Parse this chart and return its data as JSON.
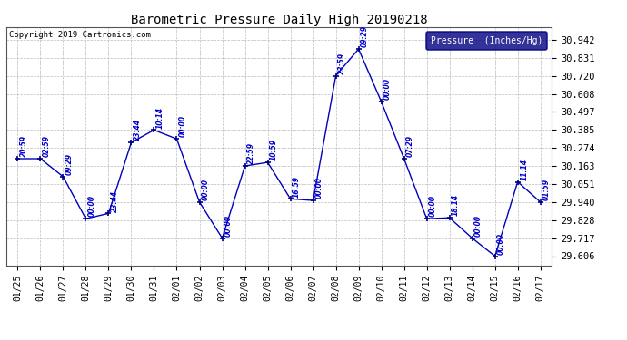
{
  "title": "Barometric Pressure Daily High 20190218",
  "copyright": "Copyright 2019 Cartronics.com",
  "legend_label": "Pressure  (Inches/Hg)",
  "x_labels": [
    "01/25",
    "01/26",
    "01/27",
    "01/28",
    "01/29",
    "01/30",
    "01/31",
    "02/01",
    "02/02",
    "02/03",
    "02/04",
    "02/05",
    "02/06",
    "02/07",
    "02/08",
    "02/09",
    "02/10",
    "02/11",
    "02/12",
    "02/13",
    "02/14",
    "02/15",
    "02/16",
    "02/17"
  ],
  "y_values": [
    30.208,
    30.208,
    30.097,
    29.837,
    29.87,
    30.308,
    30.385,
    30.33,
    29.94,
    29.717,
    30.163,
    30.185,
    29.96,
    29.95,
    30.72,
    30.885,
    30.56,
    30.208,
    29.837,
    29.843,
    29.717,
    29.606,
    30.065,
    29.94
  ],
  "time_labels": [
    "20:59",
    "02:59",
    "09:29",
    "00:00",
    "23:44",
    "23:44",
    "10:14",
    "00:00",
    "00:00",
    "00:00",
    "22:59",
    "10:59",
    "16:59",
    "00:00",
    "23:59",
    "09:29",
    "00:00",
    "07:29",
    "00:00",
    "18:14",
    "00:00",
    "00:00",
    "11:14",
    "01:59"
  ],
  "y_ticks": [
    29.606,
    29.717,
    29.828,
    29.94,
    30.051,
    30.163,
    30.274,
    30.385,
    30.497,
    30.608,
    30.72,
    30.831,
    30.942
  ],
  "ylim": [
    29.55,
    31.02
  ],
  "line_color": "#0000bb",
  "marker_color": "#000080",
  "bg_color": "#ffffff",
  "grid_color": "#bbbbbb",
  "title_color": "#000000",
  "legend_bg": "#000080",
  "legend_fg": "#ffffff",
  "copyright_color": "#000000",
  "annotation_color": "#0000cc"
}
